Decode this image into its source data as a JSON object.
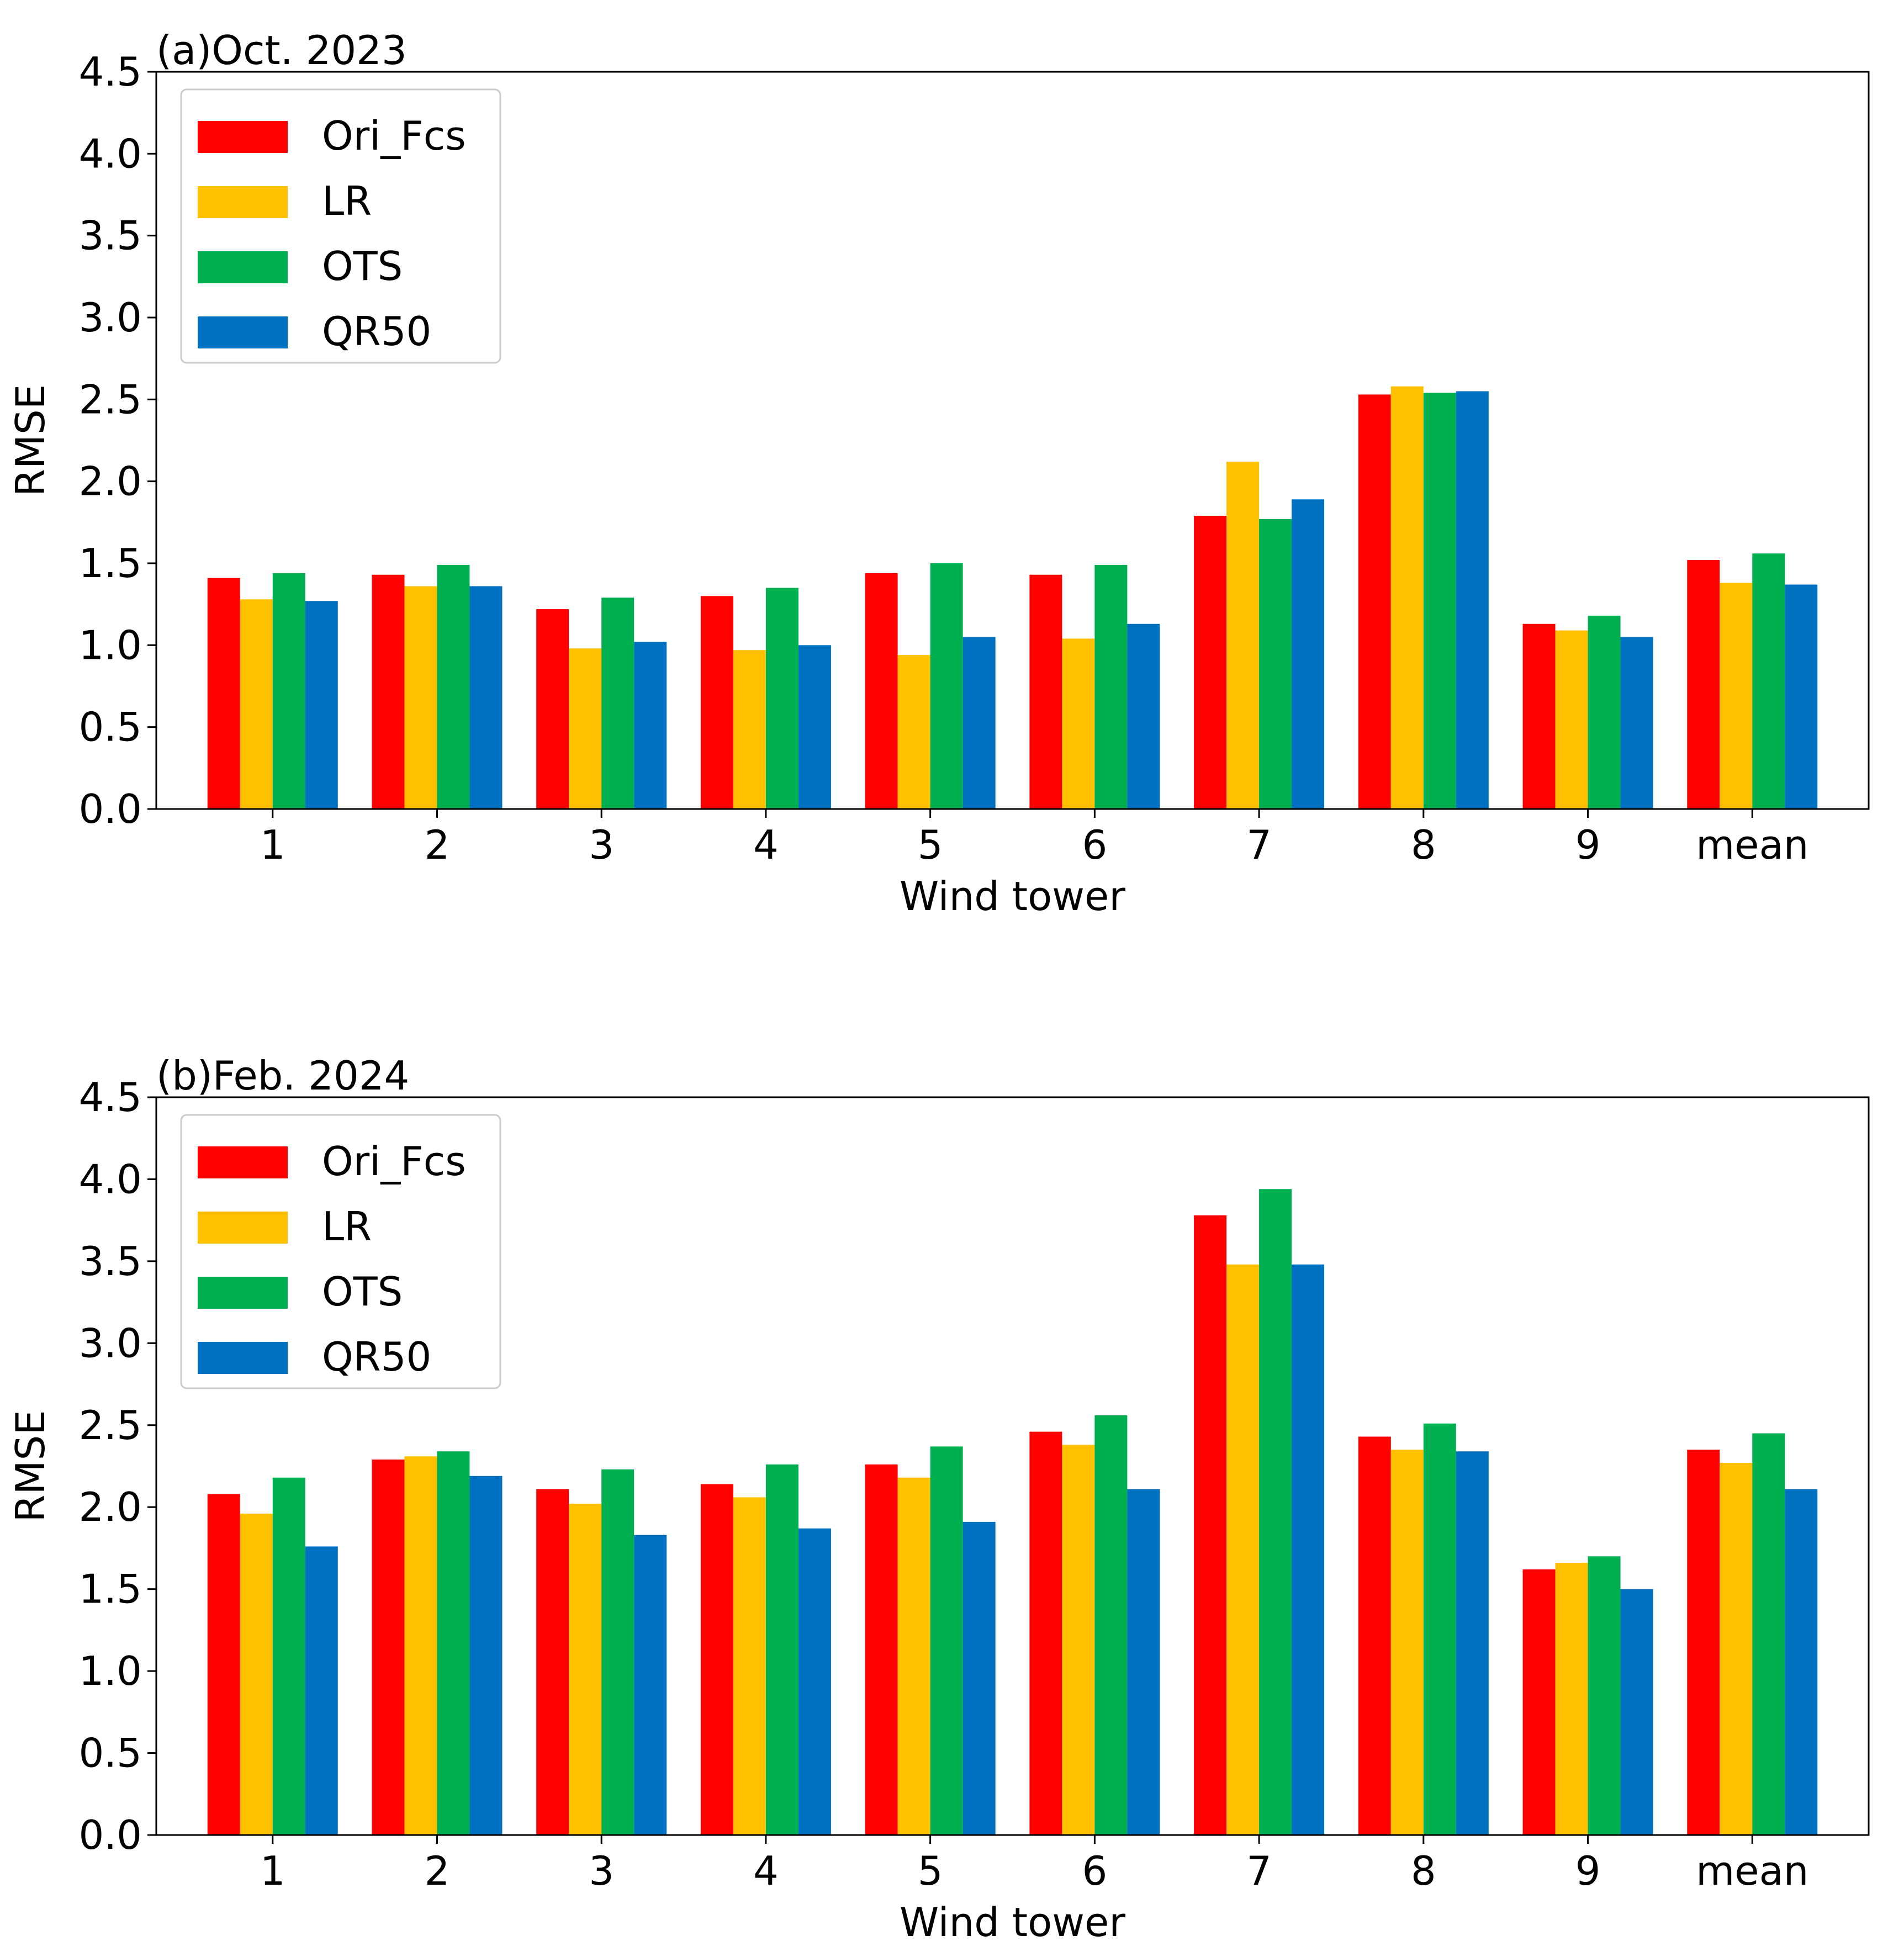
{
  "series_colors": {
    "Ori_Fcs": "#ff0000",
    "LR": "#ffc000",
    "OTS": "#00b050",
    "QR50": "#0070c0"
  },
  "chart_data": [
    {
      "type": "bar",
      "title": "(a)Oct. 2023",
      "xlabel": "Wind tower",
      "ylabel": "RMSE",
      "ylim": [
        0,
        4.5
      ],
      "yticks": [
        "0.0",
        "0.5",
        "1.0",
        "1.5",
        "2.0",
        "2.5",
        "3.0",
        "3.5",
        "4.0",
        "4.5"
      ],
      "categories": [
        "1",
        "2",
        "3",
        "4",
        "5",
        "6",
        "7",
        "8",
        "9",
        "mean"
      ],
      "legend_position": "top-left",
      "series": [
        {
          "name": "Ori_Fcs",
          "values": [
            1.41,
            1.43,
            1.22,
            1.3,
            1.44,
            1.43,
            1.79,
            2.53,
            1.13,
            1.52
          ]
        },
        {
          "name": "LR",
          "values": [
            1.28,
            1.36,
            0.98,
            0.97,
            0.94,
            1.04,
            2.12,
            2.58,
            1.09,
            1.38
          ]
        },
        {
          "name": "OTS",
          "values": [
            1.44,
            1.49,
            1.29,
            1.35,
            1.5,
            1.49,
            1.77,
            2.54,
            1.18,
            1.56
          ]
        },
        {
          "name": "QR50",
          "values": [
            1.27,
            1.36,
            1.02,
            1.0,
            1.05,
            1.13,
            1.89,
            2.55,
            1.05,
            1.37
          ]
        }
      ]
    },
    {
      "type": "bar",
      "title": "(b)Feb. 2024",
      "xlabel": "Wind tower",
      "ylabel": "RMSE",
      "ylim": [
        0,
        4.5
      ],
      "yticks": [
        "0.0",
        "0.5",
        "1.0",
        "1.5",
        "2.0",
        "2.5",
        "3.0",
        "3.5",
        "4.0",
        "4.5"
      ],
      "categories": [
        "1",
        "2",
        "3",
        "4",
        "5",
        "6",
        "7",
        "8",
        "9",
        "mean"
      ],
      "legend_position": "top-left",
      "series": [
        {
          "name": "Ori_Fcs",
          "values": [
            2.08,
            2.29,
            2.11,
            2.14,
            2.26,
            2.46,
            3.78,
            2.43,
            1.62,
            2.35
          ]
        },
        {
          "name": "LR",
          "values": [
            1.96,
            2.31,
            2.02,
            2.06,
            2.18,
            2.38,
            3.48,
            2.35,
            1.66,
            2.27
          ]
        },
        {
          "name": "OTS",
          "values": [
            2.18,
            2.34,
            2.23,
            2.26,
            2.37,
            2.56,
            3.94,
            2.51,
            1.7,
            2.45
          ]
        },
        {
          "name": "QR50",
          "values": [
            1.76,
            2.19,
            1.83,
            1.87,
            1.91,
            2.11,
            3.48,
            2.34,
            1.5,
            2.11
          ]
        }
      ]
    }
  ]
}
